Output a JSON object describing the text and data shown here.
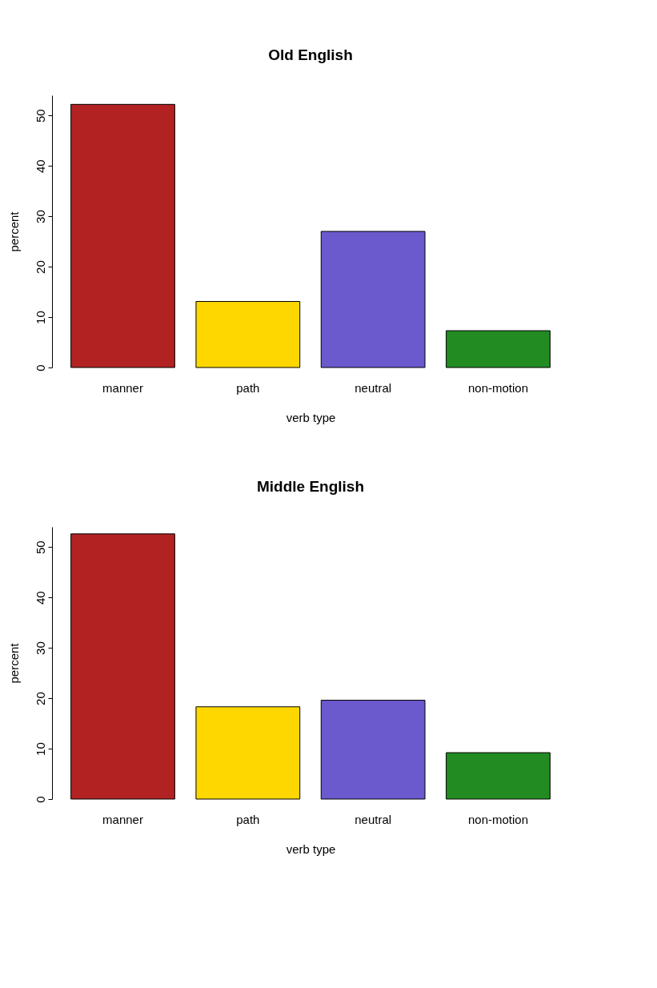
{
  "chart_data": [
    {
      "type": "bar",
      "title": "Old English",
      "xlabel": "verb type",
      "ylabel": "percent",
      "categories": [
        "manner",
        "path",
        "neutral",
        "non-motion"
      ],
      "values": [
        52.2,
        13.1,
        27.0,
        7.3
      ],
      "colors": [
        "#b22222",
        "#ffd700",
        "#6a5acd",
        "#228b22"
      ],
      "ylim": [
        0,
        54
      ],
      "yticks": [
        0,
        10,
        20,
        30,
        40,
        50
      ],
      "grid": false
    },
    {
      "type": "bar",
      "title": "Middle English",
      "xlabel": "verb type",
      "ylabel": "percent",
      "categories": [
        "manner",
        "path",
        "neutral",
        "non-motion"
      ],
      "values": [
        52.6,
        18.3,
        19.6,
        9.2
      ],
      "colors": [
        "#b22222",
        "#ffd700",
        "#6a5acd",
        "#228b22"
      ],
      "ylim": [
        0,
        54
      ],
      "yticks": [
        0,
        10,
        20,
        30,
        40,
        50
      ],
      "grid": false
    }
  ]
}
